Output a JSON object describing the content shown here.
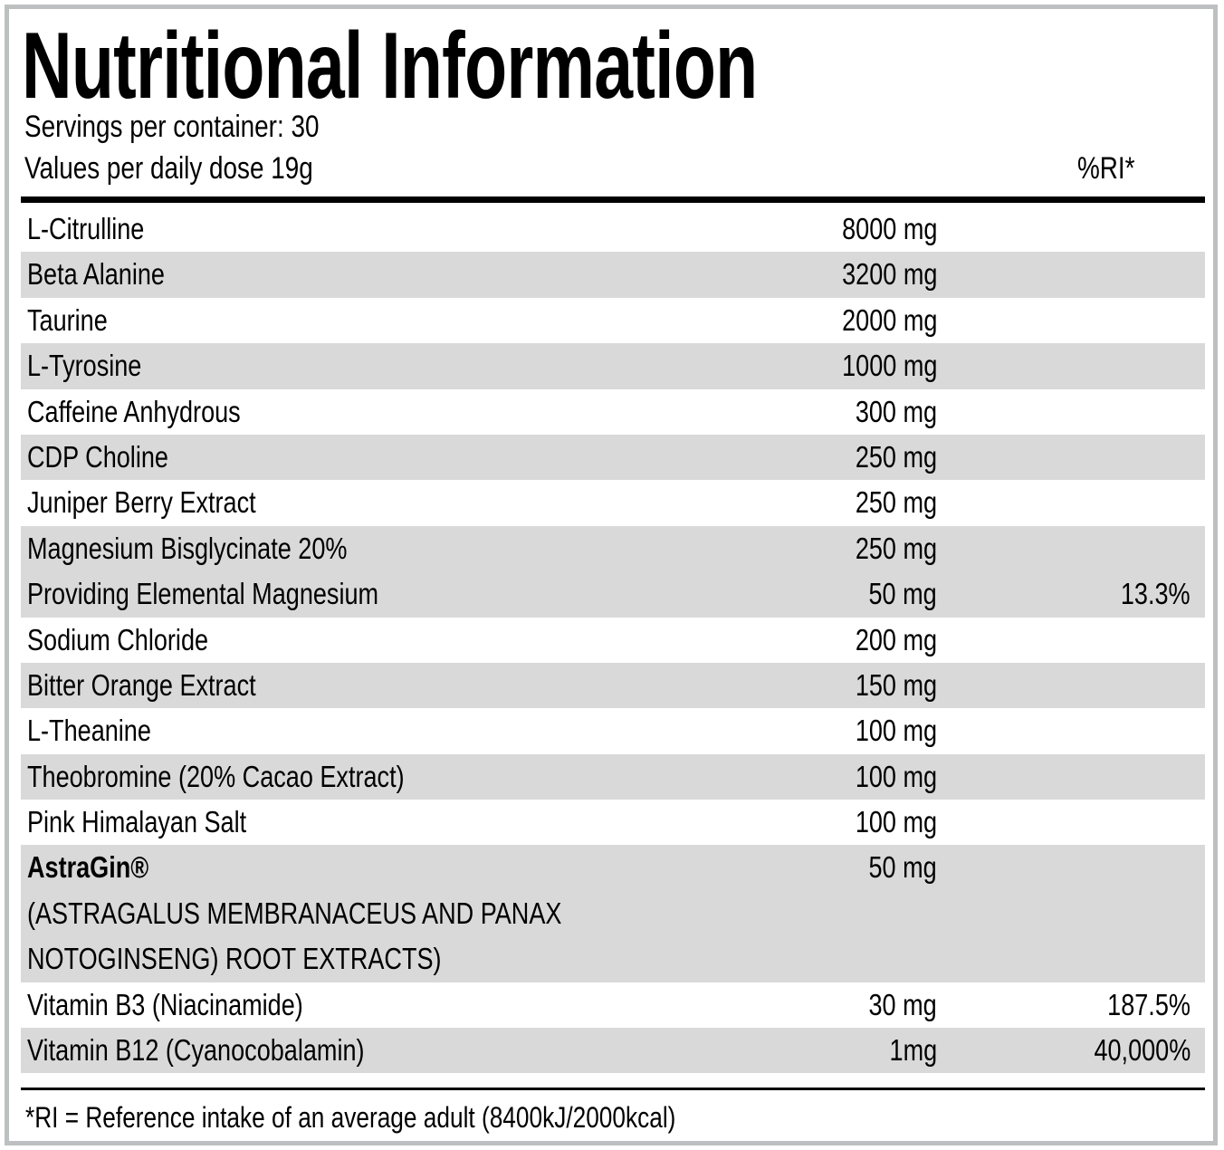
{
  "title": "Nutritional Information",
  "servings": "Servings per container: 30",
  "values_per": "Values per daily dose 19g",
  "ri_header": "%RI*",
  "rows": [
    {
      "shade": "white",
      "lines": [
        {
          "name": "L-Citrulline",
          "amount": "8000 mg",
          "ri": ""
        }
      ]
    },
    {
      "shade": "gray",
      "lines": [
        {
          "name": "Beta Alanine",
          "amount": "3200 mg",
          "ri": ""
        }
      ]
    },
    {
      "shade": "white",
      "lines": [
        {
          "name": "Taurine",
          "amount": "2000 mg",
          "ri": ""
        }
      ]
    },
    {
      "shade": "gray",
      "lines": [
        {
          "name": "L-Tyrosine",
          "amount": "1000 mg",
          "ri": ""
        }
      ]
    },
    {
      "shade": "white",
      "lines": [
        {
          "name": "Caffeine Anhydrous",
          "amount": "300 mg",
          "ri": ""
        }
      ]
    },
    {
      "shade": "gray",
      "lines": [
        {
          "name": "CDP Choline",
          "amount": "250 mg",
          "ri": ""
        }
      ]
    },
    {
      "shade": "white",
      "lines": [
        {
          "name": "Juniper Berry Extract",
          "amount": "250 mg",
          "ri": ""
        }
      ]
    },
    {
      "shade": "gray",
      "lines": [
        {
          "name": "Magnesium Bisglycinate 20%",
          "amount": "250 mg",
          "ri": ""
        },
        {
          "name": "Providing Elemental Magnesium",
          "amount": "50 mg",
          "ri": "13.3%"
        }
      ]
    },
    {
      "shade": "white",
      "lines": [
        {
          "name": "Sodium Chloride",
          "amount": "200 mg",
          "ri": ""
        }
      ]
    },
    {
      "shade": "gray",
      "lines": [
        {
          "name": "Bitter Orange Extract",
          "amount": "150 mg",
          "ri": ""
        }
      ]
    },
    {
      "shade": "white",
      "lines": [
        {
          "name": "L-Theanine",
          "amount": "100 mg",
          "ri": ""
        }
      ]
    },
    {
      "shade": "gray",
      "lines": [
        {
          "name": "Theobromine (20% Cacao Extract)",
          "amount": "100 mg",
          "ri": ""
        }
      ]
    },
    {
      "shade": "white",
      "lines": [
        {
          "name": "Pink Himalayan Salt",
          "amount": "100 mg",
          "ri": ""
        }
      ]
    },
    {
      "shade": "gray",
      "lines": [
        {
          "name": "AstraGin®",
          "amount": "50 mg",
          "ri": "",
          "bold": true
        },
        {
          "name": "(ASTRAGALUS MEMBRANACEUS AND PANAX",
          "amount": "",
          "ri": ""
        },
        {
          "name": "NOTOGINSENG) ROOT EXTRACTS)",
          "amount": "",
          "ri": ""
        }
      ]
    },
    {
      "shade": "white",
      "lines": [
        {
          "name": "Vitamin B3 (Niacinamide)",
          "amount": "30 mg",
          "ri": "187.5%"
        }
      ]
    },
    {
      "shade": "gray",
      "lines": [
        {
          "name": "Vitamin B12 (Cyanocobalamin)",
          "amount": "1mg",
          "ri": "40,000%"
        }
      ]
    }
  ],
  "footnote": "*RI = Reference intake of an average adult (8400kJ/2000kcal)",
  "colors": {
    "row_gray": "#d9d9d9",
    "border": "#bdc0c1"
  }
}
